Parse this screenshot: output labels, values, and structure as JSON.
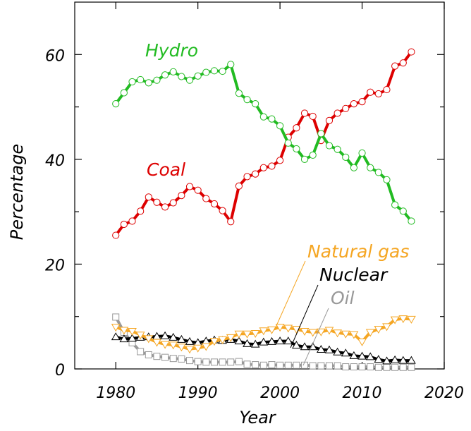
{
  "chart_data": {
    "type": "line",
    "title": "",
    "xlabel": "Year",
    "ylabel": "Percentage",
    "xlim": [
      1975,
      2020
    ],
    "ylim": [
      0,
      70
    ],
    "xticks": [
      1980,
      1990,
      2000,
      2010,
      2020
    ],
    "yticks": [
      0,
      20,
      40,
      60
    ],
    "x": [
      1980,
      1981,
      1982,
      1983,
      1984,
      1985,
      1986,
      1987,
      1988,
      1989,
      1990,
      1991,
      1992,
      1993,
      1994,
      1995,
      1996,
      1997,
      1998,
      1999,
      2000,
      2001,
      2002,
      2003,
      2004,
      2005,
      2006,
      2007,
      2008,
      2009,
      2010,
      2011,
      2012,
      2013,
      2014,
      2015,
      2016
    ],
    "series": [
      {
        "name": "Hydro",
        "color": "#22bb22",
        "marker": "circle",
        "values": [
          50.6,
          52.7,
          54.8,
          55.2,
          54.6,
          55.1,
          56.1,
          56.7,
          55.8,
          55.1,
          55.9,
          56.6,
          56.9,
          56.8,
          58.1,
          52.6,
          51.4,
          50.6,
          48.1,
          47.7,
          46.4,
          43.1,
          42.0,
          40.0,
          40.8,
          44.9,
          42.6,
          41.9,
          40.4,
          38.4,
          41.2,
          38.4,
          37.5,
          36.1,
          31.3,
          30.1,
          28.2
        ]
      },
      {
        "name": "Coal",
        "color": "#dd0000",
        "marker": "circle",
        "values": [
          25.5,
          27.6,
          28.2,
          30.1,
          32.8,
          31.8,
          30.9,
          31.7,
          33.1,
          34.8,
          34.1,
          32.5,
          31.5,
          30.2,
          28.1,
          34.9,
          36.7,
          37.2,
          38.4,
          38.7,
          39.8,
          44.2,
          46.0,
          48.8,
          48.2,
          43.6,
          47.4,
          48.8,
          49.7,
          50.6,
          51.0,
          52.8,
          52.5,
          53.3,
          57.8,
          58.4,
          60.5
        ]
      },
      {
        "name": "Natural gas",
        "color": "#f5a623",
        "marker": "triangle-down",
        "values": [
          8.0,
          7.4,
          7.2,
          6.5,
          5.8,
          5.1,
          4.7,
          4.6,
          4.2,
          3.8,
          4.0,
          4.3,
          5.3,
          5.6,
          6.0,
          6.7,
          6.7,
          6.8,
          7.3,
          7.5,
          8.0,
          7.8,
          7.6,
          7.2,
          7.0,
          7.1,
          7.4,
          6.9,
          6.7,
          6.6,
          5.2,
          7.0,
          7.6,
          8.1,
          9.4,
          9.6,
          9.5
        ]
      },
      {
        "name": "Nuclear",
        "color": "#000000",
        "marker": "triangle-up",
        "values": [
          6.1,
          5.7,
          5.8,
          6.0,
          6.1,
          6.2,
          6.3,
          6.0,
          5.6,
          5.2,
          5.0,
          5.3,
          5.5,
          5.4,
          5.6,
          5.3,
          4.8,
          4.7,
          5.1,
          5.2,
          5.3,
          5.3,
          4.5,
          4.2,
          4.2,
          3.7,
          3.6,
          3.2,
          3.0,
          2.5,
          2.4,
          2.3,
          1.8,
          1.5,
          1.7,
          1.6,
          1.6
        ]
      },
      {
        "name": "Oil",
        "color": "#999999",
        "marker": "square",
        "values": [
          9.9,
          7.0,
          5.0,
          3.3,
          2.7,
          2.4,
          2.2,
          2.0,
          1.9,
          1.6,
          1.4,
          1.3,
          1.3,
          1.3,
          1.3,
          1.4,
          0.9,
          0.8,
          0.7,
          0.8,
          0.7,
          0.7,
          0.7,
          0.7,
          0.6,
          0.6,
          0.6,
          0.6,
          0.4,
          0.4,
          0.4,
          0.4,
          0.3,
          0.3,
          0.3,
          0.3,
          0.3
        ]
      }
    ],
    "grid": false
  }
}
